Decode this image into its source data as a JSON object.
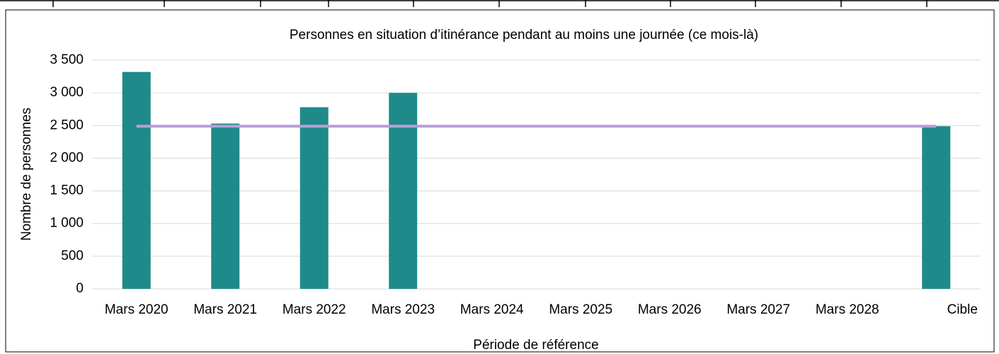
{
  "chart_data": {
    "type": "bar",
    "title": "Personnes en situation d’itinérance pendant au moins une journée (ce mois-là)",
    "x_label": "Période de référence",
    "y_label": "Nombre de personnes",
    "categories": [
      "Mars 2020",
      "Mars 2021",
      "Mars 2022",
      "Mars 2023",
      "Mars 2024",
      "Mars 2025",
      "Mars 2026",
      "Mars 2027",
      "Mars 2028",
      "Cible"
    ],
    "series": [
      {
        "type": "bar",
        "color": "#1f8a8a",
        "values": [
          3320,
          2530,
          2780,
          3000,
          null,
          null,
          null,
          null,
          null,
          2490
        ]
      },
      {
        "type": "line",
        "color": "#b7a0d6",
        "values": [
          2490,
          2490,
          2490,
          2490,
          2490,
          2490,
          2490,
          2490,
          2490,
          2490
        ]
      }
    ],
    "ylim": [
      0,
      3500
    ],
    "yticks": [
      0,
      500,
      {
        "value": 1000,
        "label": "1 000"
      },
      {
        "value": 1500,
        "label": "1 500"
      },
      {
        "value": 2000,
        "label": "2 000"
      },
      {
        "value": 2500,
        "label": "2 500"
      },
      {
        "value": 3000,
        "label": "3 000"
      },
      {
        "value": 3500,
        "label": "3 500"
      }
    ],
    "grid": true
  }
}
